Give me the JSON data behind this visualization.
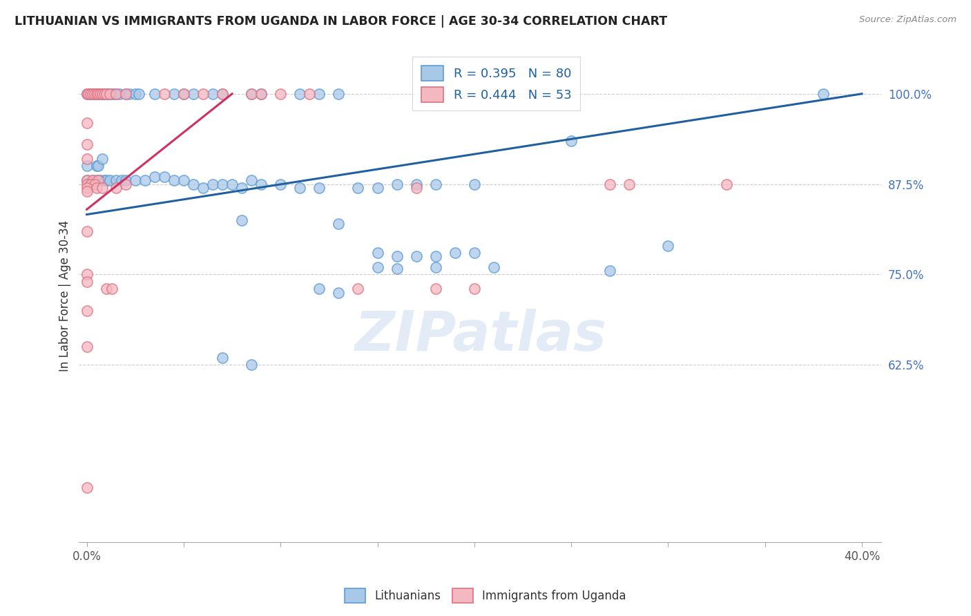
{
  "title": "LITHUANIAN VS IMMIGRANTS FROM UGANDA IN LABOR FORCE | AGE 30-34 CORRELATION CHART",
  "source": "Source: ZipAtlas.com",
  "ylabel": "In Labor Force | Age 30-34",
  "xlim": [
    -0.004,
    0.41
  ],
  "ylim": [
    0.38,
    1.06
  ],
  "yticks": [
    0.625,
    0.75,
    0.875,
    1.0
  ],
  "yticklabels": [
    "62.5%",
    "75.0%",
    "87.5%",
    "100.0%"
  ],
  "xtick_positions": [
    0.0,
    0.4
  ],
  "xticklabels": [
    "0.0%",
    "40.0%"
  ],
  "blue_color": "#a8c8e8",
  "blue_edge_color": "#5b9bd5",
  "pink_color": "#f4b8c1",
  "pink_edge_color": "#e07080",
  "blue_line_color": "#2060a0",
  "pink_line_color": "#d03060",
  "watermark": "ZIPatlas",
  "blue_line_x0": 0.0,
  "blue_line_y0": 0.833,
  "blue_line_x1": 0.4,
  "blue_line_y1": 1.0,
  "pink_line_x0": 0.0,
  "pink_line_y0": 0.84,
  "pink_line_x1": 0.075,
  "pink_line_y1": 1.0,
  "blue_scatter": [
    [
      0.0,
      1.0
    ],
    [
      0.002,
      1.0
    ],
    [
      0.003,
      1.0
    ],
    [
      0.004,
      1.0
    ],
    [
      0.005,
      1.0
    ],
    [
      0.006,
      1.0
    ],
    [
      0.007,
      1.0
    ],
    [
      0.008,
      1.0
    ],
    [
      0.009,
      1.0
    ],
    [
      0.01,
      1.0
    ],
    [
      0.011,
      1.0
    ],
    [
      0.012,
      1.0
    ],
    [
      0.013,
      1.0
    ],
    [
      0.014,
      1.0
    ],
    [
      0.015,
      1.0
    ],
    [
      0.017,
      1.0
    ],
    [
      0.02,
      1.0
    ],
    [
      0.022,
      1.0
    ],
    [
      0.025,
      1.0
    ],
    [
      0.027,
      1.0
    ],
    [
      0.035,
      1.0
    ],
    [
      0.045,
      1.0
    ],
    [
      0.05,
      1.0
    ],
    [
      0.055,
      1.0
    ],
    [
      0.065,
      1.0
    ],
    [
      0.07,
      1.0
    ],
    [
      0.085,
      1.0
    ],
    [
      0.09,
      1.0
    ],
    [
      0.11,
      1.0
    ],
    [
      0.12,
      1.0
    ],
    [
      0.13,
      1.0
    ],
    [
      0.38,
      1.0
    ],
    [
      0.0,
      0.9
    ],
    [
      0.005,
      0.9
    ],
    [
      0.006,
      0.9
    ],
    [
      0.008,
      0.91
    ],
    [
      0.0,
      0.88
    ],
    [
      0.003,
      0.88
    ],
    [
      0.005,
      0.88
    ],
    [
      0.007,
      0.88
    ],
    [
      0.009,
      0.88
    ],
    [
      0.01,
      0.88
    ],
    [
      0.012,
      0.88
    ],
    [
      0.015,
      0.88
    ],
    [
      0.018,
      0.88
    ],
    [
      0.02,
      0.88
    ],
    [
      0.025,
      0.88
    ],
    [
      0.03,
      0.88
    ],
    [
      0.035,
      0.885
    ],
    [
      0.04,
      0.885
    ],
    [
      0.045,
      0.88
    ],
    [
      0.05,
      0.88
    ],
    [
      0.055,
      0.875
    ],
    [
      0.06,
      0.87
    ],
    [
      0.065,
      0.875
    ],
    [
      0.07,
      0.875
    ],
    [
      0.075,
      0.875
    ],
    [
      0.08,
      0.87
    ],
    [
      0.085,
      0.88
    ],
    [
      0.09,
      0.875
    ],
    [
      0.1,
      0.875
    ],
    [
      0.11,
      0.87
    ],
    [
      0.12,
      0.87
    ],
    [
      0.14,
      0.87
    ],
    [
      0.15,
      0.87
    ],
    [
      0.16,
      0.875
    ],
    [
      0.17,
      0.875
    ],
    [
      0.18,
      0.875
    ],
    [
      0.2,
      0.875
    ],
    [
      0.25,
      0.935
    ],
    [
      0.08,
      0.825
    ],
    [
      0.13,
      0.82
    ],
    [
      0.15,
      0.78
    ],
    [
      0.16,
      0.775
    ],
    [
      0.17,
      0.775
    ],
    [
      0.18,
      0.775
    ],
    [
      0.19,
      0.78
    ],
    [
      0.2,
      0.78
    ],
    [
      0.15,
      0.76
    ],
    [
      0.16,
      0.758
    ],
    [
      0.18,
      0.76
    ],
    [
      0.21,
      0.76
    ],
    [
      0.3,
      0.79
    ],
    [
      0.07,
      0.635
    ],
    [
      0.085,
      0.625
    ],
    [
      0.12,
      0.73
    ],
    [
      0.13,
      0.725
    ],
    [
      0.27,
      0.755
    ]
  ],
  "pink_scatter": [
    [
      0.0,
      1.0
    ],
    [
      0.001,
      1.0
    ],
    [
      0.002,
      1.0
    ],
    [
      0.003,
      1.0
    ],
    [
      0.004,
      1.0
    ],
    [
      0.005,
      1.0
    ],
    [
      0.006,
      1.0
    ],
    [
      0.007,
      1.0
    ],
    [
      0.008,
      1.0
    ],
    [
      0.009,
      1.0
    ],
    [
      0.01,
      1.0
    ],
    [
      0.012,
      1.0
    ],
    [
      0.015,
      1.0
    ],
    [
      0.02,
      1.0
    ],
    [
      0.04,
      1.0
    ],
    [
      0.05,
      1.0
    ],
    [
      0.06,
      1.0
    ],
    [
      0.07,
      1.0
    ],
    [
      0.085,
      1.0
    ],
    [
      0.09,
      1.0
    ],
    [
      0.1,
      1.0
    ],
    [
      0.115,
      1.0
    ],
    [
      0.0,
      0.96
    ],
    [
      0.0,
      0.93
    ],
    [
      0.0,
      0.91
    ],
    [
      0.0,
      0.88
    ],
    [
      0.003,
      0.88
    ],
    [
      0.006,
      0.88
    ],
    [
      0.0,
      0.875
    ],
    [
      0.002,
      0.875
    ],
    [
      0.004,
      0.875
    ],
    [
      0.0,
      0.87
    ],
    [
      0.005,
      0.87
    ],
    [
      0.008,
      0.87
    ],
    [
      0.0,
      0.865
    ],
    [
      0.015,
      0.87
    ],
    [
      0.02,
      0.875
    ],
    [
      0.0,
      0.81
    ],
    [
      0.0,
      0.75
    ],
    [
      0.0,
      0.74
    ],
    [
      0.0,
      0.7
    ],
    [
      0.0,
      0.65
    ],
    [
      0.01,
      0.73
    ],
    [
      0.013,
      0.73
    ],
    [
      0.14,
      0.73
    ],
    [
      0.17,
      0.87
    ],
    [
      0.18,
      0.73
    ],
    [
      0.2,
      0.73
    ],
    [
      0.27,
      0.875
    ],
    [
      0.28,
      0.875
    ],
    [
      0.33,
      0.875
    ],
    [
      0.0,
      0.455
    ]
  ]
}
